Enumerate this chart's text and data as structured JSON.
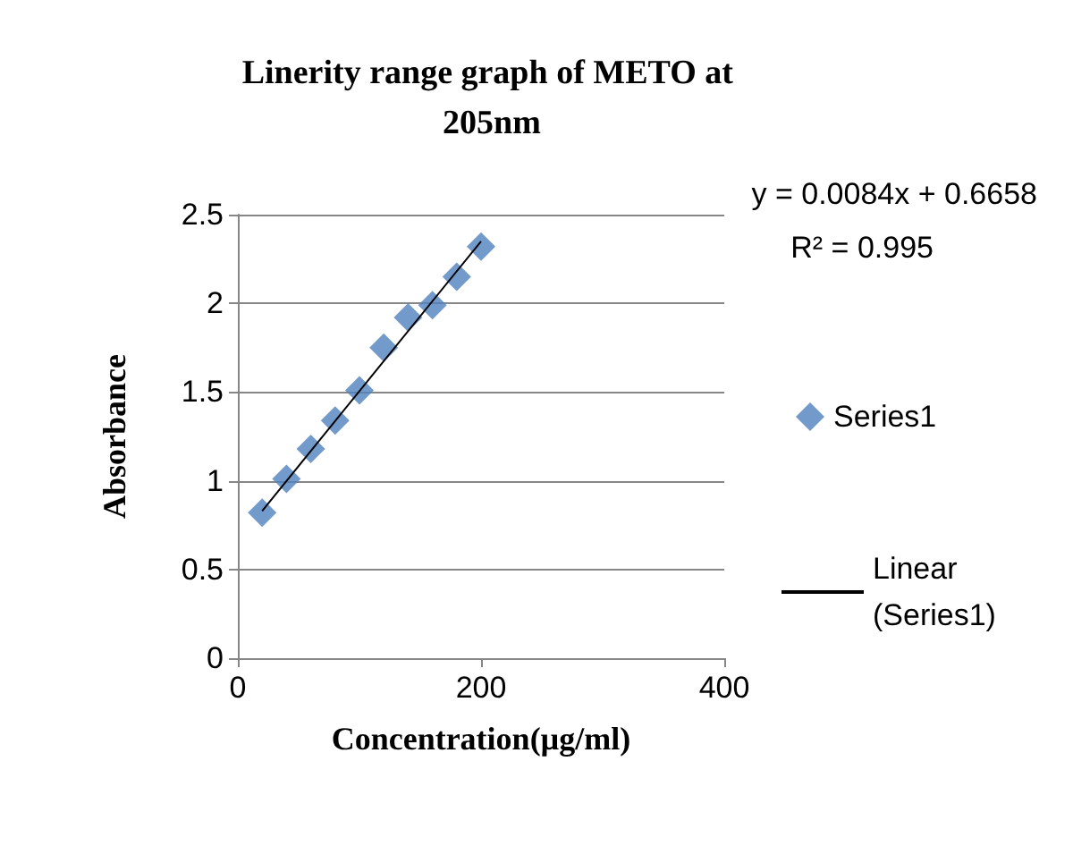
{
  "chart_data": {
    "type": "scatter",
    "title": "Linerity range graph of METO at 205nm",
    "xlabel": "Concentration(µg/ml)",
    "ylabel": "Absorbance",
    "x": [
      20,
      40,
      60,
      80,
      100,
      120,
      140,
      160,
      180,
      200
    ],
    "series": [
      {
        "name": "Series1",
        "color": "#4f81bd",
        "marker": "diamond",
        "values": [
          0.82,
          1.01,
          1.18,
          1.34,
          1.51,
          1.75,
          1.92,
          1.99,
          2.15,
          2.32
        ]
      },
      {
        "name": "Linear (Series1)",
        "type": "line",
        "color": "#000000",
        "x": [
          20,
          200
        ],
        "values": [
          0.83,
          2.35
        ]
      }
    ],
    "xlim": [
      0,
      400
    ],
    "xticks": [
      0,
      200,
      400
    ],
    "ylim": [
      0,
      2.5
    ],
    "yticks": [
      0,
      0.5,
      1,
      1.5,
      2,
      2.5
    ],
    "grid": "y",
    "legend": "right",
    "annotations": [
      "y = 0.0084x + 0.6658",
      "R² = 0.995"
    ]
  }
}
